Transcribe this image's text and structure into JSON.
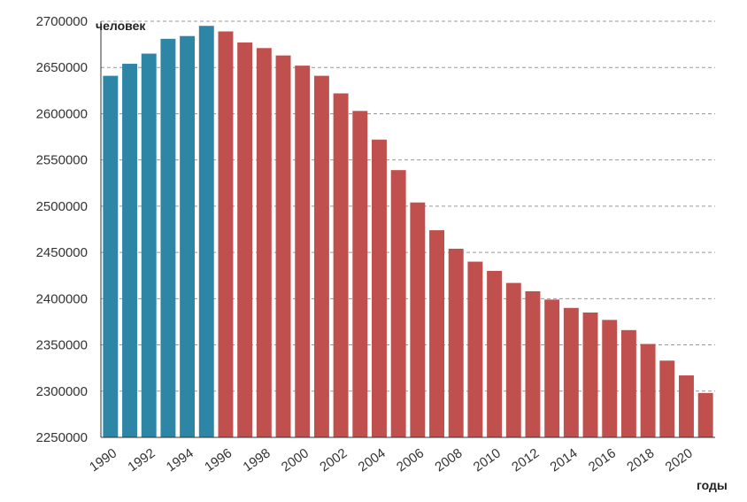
{
  "chart_data": {
    "type": "bar",
    "title": "",
    "ylabel": "человек",
    "xlabel": "годы",
    "ylim": [
      2250000,
      2700000
    ],
    "y_ticks": [
      2250000,
      2300000,
      2350000,
      2400000,
      2450000,
      2500000,
      2550000,
      2600000,
      2650000,
      2700000
    ],
    "y_tick_labels": [
      "2250000",
      "2300000",
      "2350000",
      "2400000",
      "2450000",
      "2500000",
      "2550000",
      "2600000",
      "2650000",
      "2700000"
    ],
    "grid": "horizontal dashed",
    "categories": [
      "1990",
      "1991",
      "1992",
      "1993",
      "1994",
      "1995",
      "1996",
      "1997",
      "1998",
      "1999",
      "2000",
      "2001",
      "2002",
      "2003",
      "2004",
      "2005",
      "2006",
      "2007",
      "2008",
      "2009",
      "2010",
      "2011",
      "2012",
      "2013",
      "2014",
      "2015",
      "2016",
      "2017",
      "2018",
      "2019",
      "2020",
      "2021"
    ],
    "x_tick_labels": [
      "1990",
      "1992",
      "1994",
      "1996",
      "1998",
      "2000",
      "2002",
      "2004",
      "2006",
      "2008",
      "2010",
      "2012",
      "2014",
      "2016",
      "2018",
      "2020"
    ],
    "values": [
      2641000,
      2654000,
      2665000,
      2681000,
      2684000,
      2695000,
      2689000,
      2677000,
      2671000,
      2663000,
      2652000,
      2641000,
      2622000,
      2603000,
      2572000,
      2539000,
      2504000,
      2474000,
      2454000,
      2440000,
      2430000,
      2417000,
      2408000,
      2399000,
      2390000,
      2385000,
      2377000,
      2366000,
      2351000,
      2333000,
      2317000,
      2298000
    ],
    "colors": {
      "growth": "#2e86a6",
      "decline": "#c0504d",
      "grid": "#999999",
      "axis": "#333333"
    },
    "growth_until": "1995"
  }
}
